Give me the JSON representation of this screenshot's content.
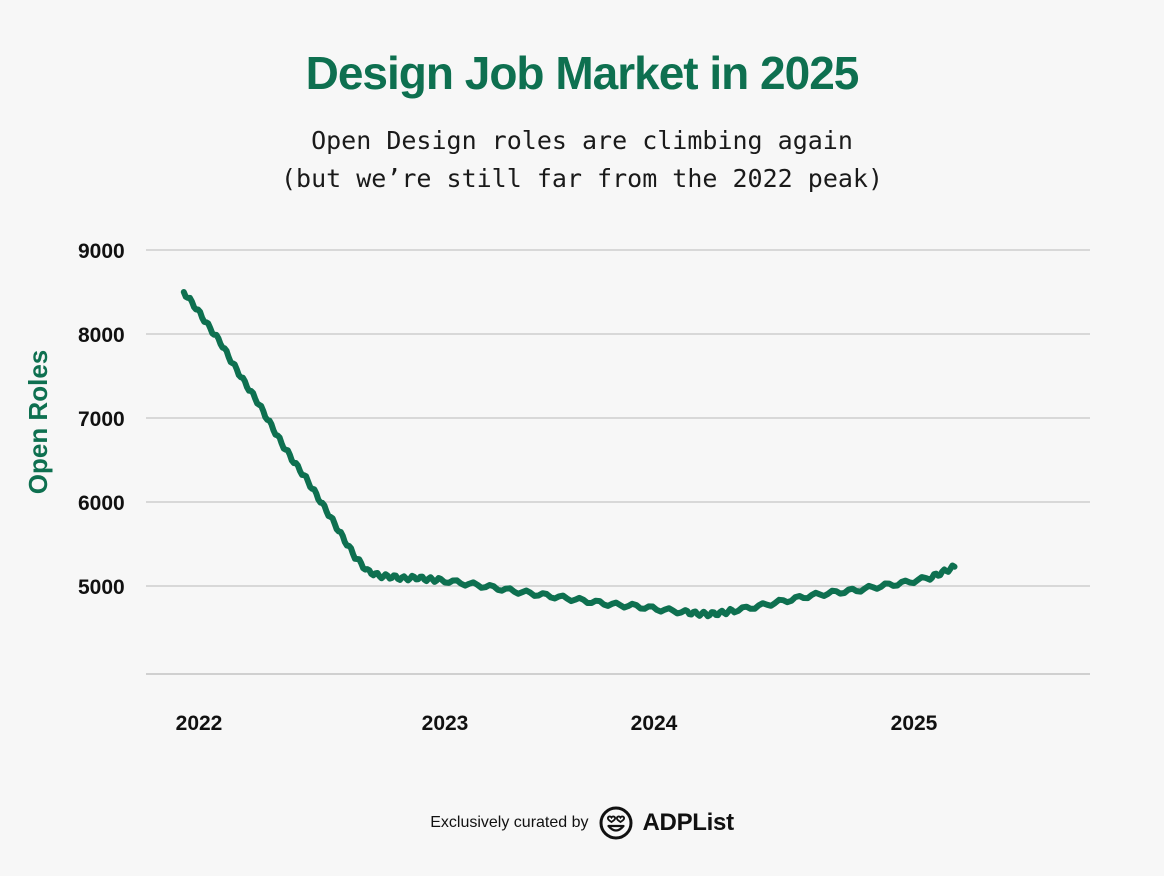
{
  "title": "Design Job Market in 2025",
  "subtitle_line1": "Open Design roles are climbing again",
  "subtitle_line2": "(but we’re still far from the 2022 peak)",
  "colors": {
    "accent": "#0e7050",
    "grid": "#b9b9b9",
    "background": "#f7f7f7",
    "text": "#111111"
  },
  "footer": {
    "curated_by": "Exclusively curated by",
    "brand": "ADPList",
    "logo_icon": "smiley-heart-eyes-icon"
  },
  "chart_data": {
    "type": "line",
    "title": "Design Job Market in 2025",
    "xlabel": "",
    "ylabel": "Open Roles",
    "ylim": [
      4000,
      9000
    ],
    "xlim": [
      2021.9,
      2025.75
    ],
    "yticks": [
      9000,
      8000,
      7000,
      6000,
      5000
    ],
    "xticks": [
      {
        "label": "2022",
        "value": 2022.0
      },
      {
        "label": "2023",
        "value": 2023.0
      },
      {
        "label": "2024",
        "value": 2024.0
      },
      {
        "label": "2025",
        "value": 2025.0
      }
    ],
    "grid": true,
    "series": [
      {
        "name": "Open Roles",
        "x": [
          2021.95,
          2022.0,
          2022.05,
          2022.1,
          2022.15,
          2022.2,
          2022.25,
          2022.3,
          2022.35,
          2022.4,
          2022.45,
          2022.5,
          2022.55,
          2022.6,
          2022.65,
          2022.7,
          2022.75,
          2022.8,
          2022.85,
          2022.9,
          2022.95,
          2023.0,
          2023.1,
          2023.2,
          2023.3,
          2023.4,
          2023.5,
          2023.6,
          2023.7,
          2023.8,
          2023.9,
          2024.0,
          2024.05,
          2024.1,
          2024.15,
          2024.2,
          2024.3,
          2024.4,
          2024.5,
          2024.6,
          2024.7,
          2024.8,
          2024.9,
          2025.0,
          2025.05,
          2025.1
        ],
        "values": [
          8500,
          8310,
          8100,
          7900,
          7650,
          7420,
          7200,
          6950,
          6700,
          6480,
          6280,
          6050,
          5820,
          5580,
          5350,
          5180,
          5120,
          5110,
          5090,
          5100,
          5080,
          5070,
          5030,
          4990,
          4940,
          4900,
          4860,
          4820,
          4780,
          4760,
          4720,
          4690,
          4670,
          4665,
          4680,
          4710,
          4760,
          4820,
          4880,
          4920,
          4950,
          5000,
          5040,
          5100,
          5160,
          5230
        ]
      }
    ],
    "trend": {
      "x": [
        2024.15,
        2024.75
      ],
      "values": [
        4690,
        5000
      ]
    }
  }
}
